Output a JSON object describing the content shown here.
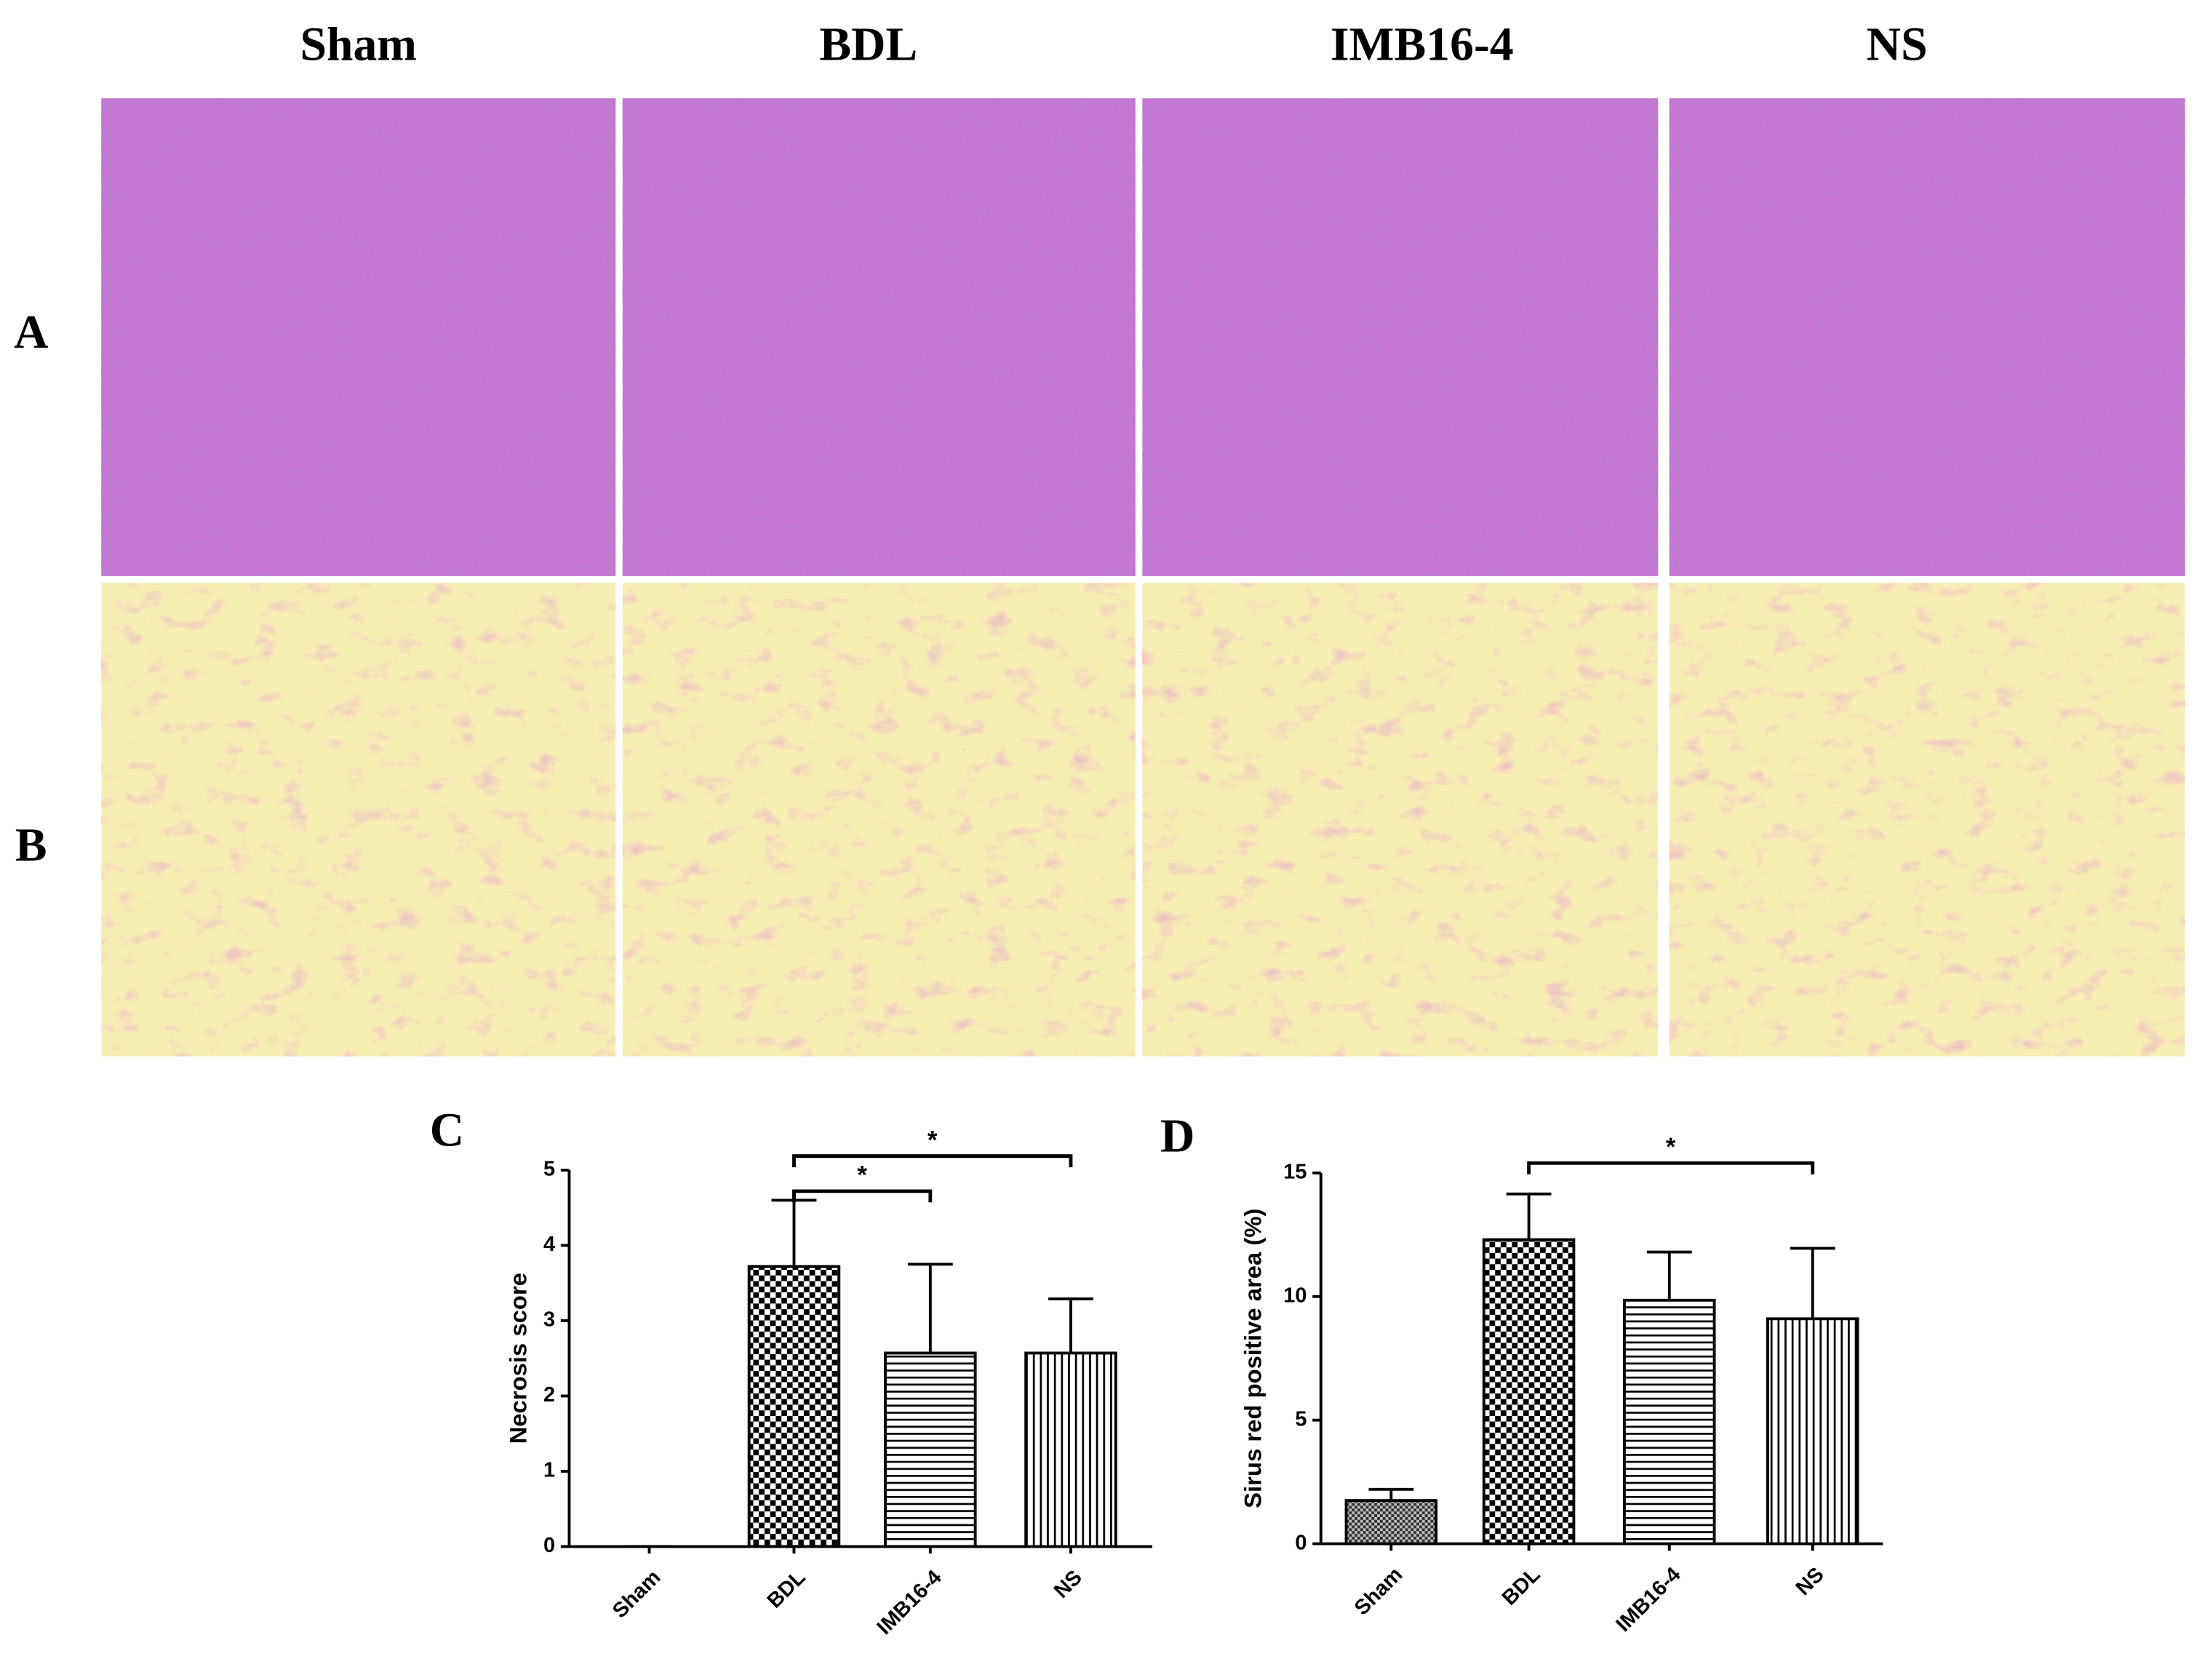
{
  "figure": {
    "columns": [
      "Sham",
      "BDL",
      "IMB16-4",
      "NS"
    ],
    "rows": [
      "A",
      "B"
    ]
  },
  "chart_data": [
    {
      "type": "bar",
      "panel": "C",
      "ylabel": "Necrosis score",
      "categories": [
        "Sham",
        "BDL",
        "IMB16-4",
        "NS"
      ],
      "values": [
        0,
        3.72,
        2.57,
        2.57
      ],
      "errors": [
        0,
        0.88,
        1.18,
        0.72
      ],
      "patterns": [
        "fine-check",
        "check",
        "horizontal",
        "vertical"
      ],
      "ylim": [
        0,
        5
      ],
      "yticks": [
        0,
        1,
        2,
        3,
        4,
        5
      ],
      "significance": [
        {
          "from": 1,
          "to": 2,
          "label": "*"
        },
        {
          "from": 1,
          "to": 3,
          "label": "*"
        }
      ]
    },
    {
      "type": "bar",
      "panel": "D",
      "ylabel": "Sirus red positive area (%)",
      "categories": [
        "Sham",
        "BDL",
        "IMB16-4",
        "NS"
      ],
      "values": [
        1.75,
        12.3,
        9.85,
        9.1
      ],
      "errors": [
        0.45,
        1.85,
        1.95,
        2.85
      ],
      "patterns": [
        "fine-check",
        "check",
        "horizontal",
        "vertical"
      ],
      "ylim": [
        0,
        15
      ],
      "yticks": [
        0,
        5,
        10,
        15
      ],
      "significance": [
        {
          "from": 1,
          "to": 3,
          "label": "*"
        }
      ]
    }
  ]
}
